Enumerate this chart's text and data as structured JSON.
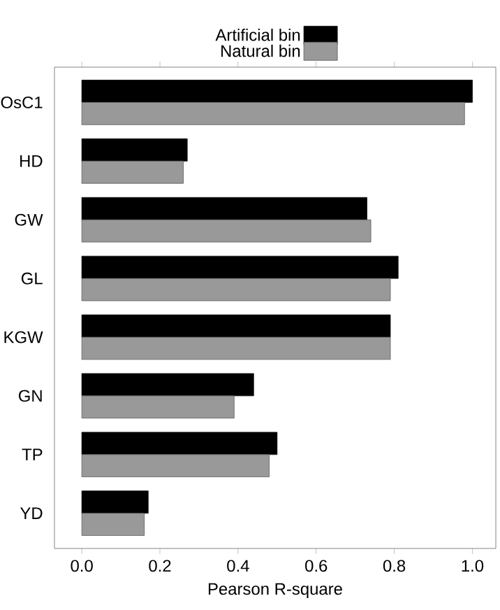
{
  "chart_data": {
    "type": "bar",
    "orientation": "horizontal",
    "xlabel": "Pearson R-square",
    "legend": "top",
    "categories": [
      "OsC1",
      "HD",
      "GW",
      "GL",
      "KGW",
      "GN",
      "TP",
      "YD"
    ],
    "series": [
      {
        "name": "Artificial bin",
        "color": "#000000",
        "values": [
          1.0,
          0.27,
          0.73,
          0.81,
          0.79,
          0.44,
          0.5,
          0.17
        ]
      },
      {
        "name": "Natural bin",
        "color": "#999999",
        "values": [
          0.98,
          0.26,
          0.74,
          0.79,
          0.79,
          0.39,
          0.48,
          0.16
        ]
      }
    ],
    "xlim": [
      -0.07,
      1.06
    ],
    "xticks": [
      {
        "value": 0,
        "label": "0.0"
      },
      {
        "value": 0.2,
        "label": "0.2"
      },
      {
        "value": 0.4,
        "label": "0.4"
      },
      {
        "value": 0.6,
        "label": "0.6"
      },
      {
        "value": 0.8,
        "label": "0.8"
      },
      {
        "value": 1,
        "label": "1.0"
      }
    ]
  }
}
